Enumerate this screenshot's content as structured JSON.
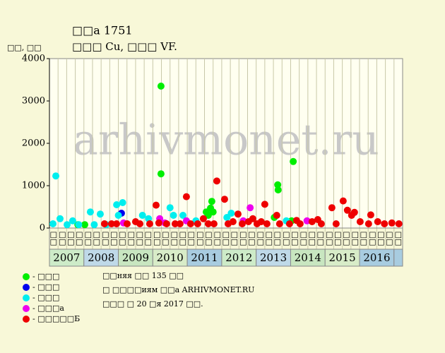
{
  "chart_data": {
    "type": "scatter",
    "title": "□□а 1751",
    "subtitle": "□□□ Cu, □□□ VF.",
    "y_label": "□□, □□",
    "watermark": "arhivmonet.ru",
    "ylim": [
      0,
      4000
    ],
    "yticks": [
      0,
      1000,
      2000,
      3000,
      4000
    ],
    "xlim": [
      0,
      41
    ],
    "columns": [
      "□□",
      "□□",
      "□□",
      "□□",
      "□□",
      "□□",
      "□□",
      "□□",
      "□□",
      "□□",
      "□□",
      "□□",
      "□□",
      "□□",
      "□□",
      "□□",
      "□□",
      "□□",
      "□□",
      "□□",
      "□□",
      "□□",
      "□□",
      "□□",
      "□□",
      "□□",
      "□□",
      "□□",
      "□□",
      "□□",
      "□□",
      "□□",
      "□□",
      "□□",
      "□□",
      "□□",
      "□□",
      "□□",
      "□□",
      "□□",
      "□□"
    ],
    "years": [
      "2007",
      "2008",
      "2009",
      "2010",
      "2011",
      "2012",
      "2013",
      "2014",
      "2015",
      "2016"
    ],
    "notes": [
      "□□няя □□ 135 □□",
      "□ □□□□иям □□а ARHIVMONET.RU",
      "□□□ □ 20 □я 2017 □□."
    ],
    "series": [
      {
        "name": "- □□□",
        "color": "#00ee00",
        "x": [
          12.95,
          12.95,
          18.85,
          18.7,
          18.44,
          18.2,
          19.0,
          26.5,
          26.55,
          28.3,
          28.1,
          26.1,
          3.3,
          4.1
        ],
        "values": [
          3350,
          1280,
          630,
          470,
          300,
          380,
          380,
          1020,
          900,
          1570,
          170,
          250,
          80,
          80
        ]
      },
      {
        "name": "- □□□",
        "color": "#0000ee",
        "x": [
          8.36
        ],
        "values": [
          350
        ]
      },
      {
        "name": "- □□□",
        "color": "#00eeee",
        "x": [
          0.74,
          0.41,
          1.23,
          2.05,
          2.7,
          3.4,
          4.75,
          5.2,
          5.9,
          6.6,
          7.8,
          8.5,
          8.0,
          10.8,
          11.5,
          14.0,
          14.4,
          15.5,
          17.0,
          20.6,
          21.1,
          27.5
        ],
        "values": [
          1230,
          100,
          220,
          80,
          170,
          80,
          380,
          80,
          330,
          80,
          550,
          600,
          300,
          300,
          220,
          480,
          300,
          300,
          170,
          250,
          350,
          170
        ]
      },
      {
        "name": "- □□□а",
        "color": "#ee00ee",
        "x": [
          8.6,
          12.8,
          13.4,
          15.9,
          22.5,
          23.3,
          29.9
        ],
        "values": [
          120,
          220,
          120,
          170,
          170,
          480,
          170
        ]
      },
      {
        "name": "- □□□□□Б",
        "color": "#ee0000",
        "x": [
          6.39,
          7.21,
          7.79,
          9.02,
          10.0,
          10.5,
          11.64,
          12.38,
          12.7,
          13.6,
          14.59,
          15.16,
          15.9,
          16.39,
          17.21,
          17.87,
          18.44,
          19.1,
          19.43,
          20.33,
          20.74,
          21.31,
          21.89,
          22.38,
          23.11,
          23.61,
          24.1,
          24.59,
          25.0,
          25.25,
          26.39,
          26.72,
          27.87,
          28.69,
          29.1,
          30.49,
          31.15,
          31.56,
          32.79,
          33.28,
          34.1,
          34.59,
          35.08,
          35.41,
          36.07,
          37.05,
          37.3,
          38.11,
          38.89,
          39.75,
          40.57
        ],
        "values": [
          100,
          100,
          100,
          100,
          150,
          100,
          100,
          540,
          120,
          100,
          100,
          100,
          740,
          100,
          100,
          220,
          100,
          100,
          1110,
          680,
          100,
          150,
          330,
          100,
          150,
          220,
          100,
          150,
          560,
          100,
          300,
          100,
          100,
          180,
          100,
          150,
          200,
          100,
          480,
          100,
          640,
          420,
          300,
          370,
          150,
          100,
          310,
          150,
          100,
          120,
          100
        ]
      }
    ]
  }
}
